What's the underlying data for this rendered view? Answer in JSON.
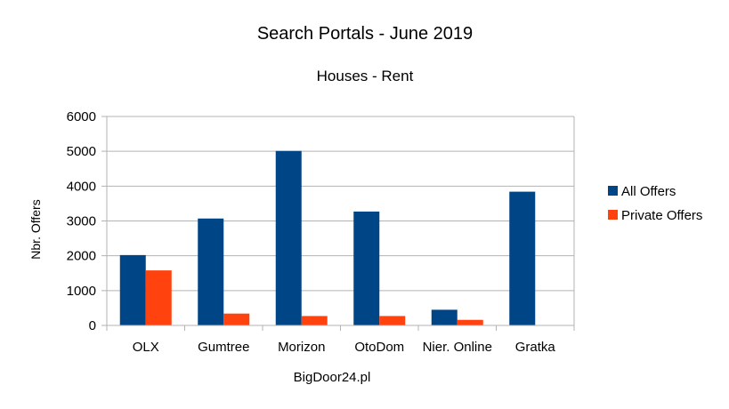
{
  "chart_data": {
    "type": "bar",
    "title": "Search Portals - June 2019",
    "subtitle": "Houses - Rent",
    "xlabel": "",
    "ylabel": "Nbr. Offers",
    "categories": [
      "OLX",
      "Gumtree",
      "Morizon",
      "OtoDom",
      "Nier. Online",
      "Gratka"
    ],
    "series": [
      {
        "name": "All Offers",
        "color": "#004586",
        "values": [
          2020,
          3070,
          5010,
          3270,
          450,
          3840
        ]
      },
      {
        "name": "Private Offers",
        "color": "#ff420e",
        "values": [
          1580,
          340,
          270,
          270,
          160,
          0
        ]
      }
    ],
    "ylim": [
      0,
      6000
    ],
    "yticks": [
      0,
      1000,
      2000,
      3000,
      4000,
      5000,
      6000
    ],
    "grid": true,
    "legend_position": "right",
    "footer": "BigDoor24.pl"
  }
}
